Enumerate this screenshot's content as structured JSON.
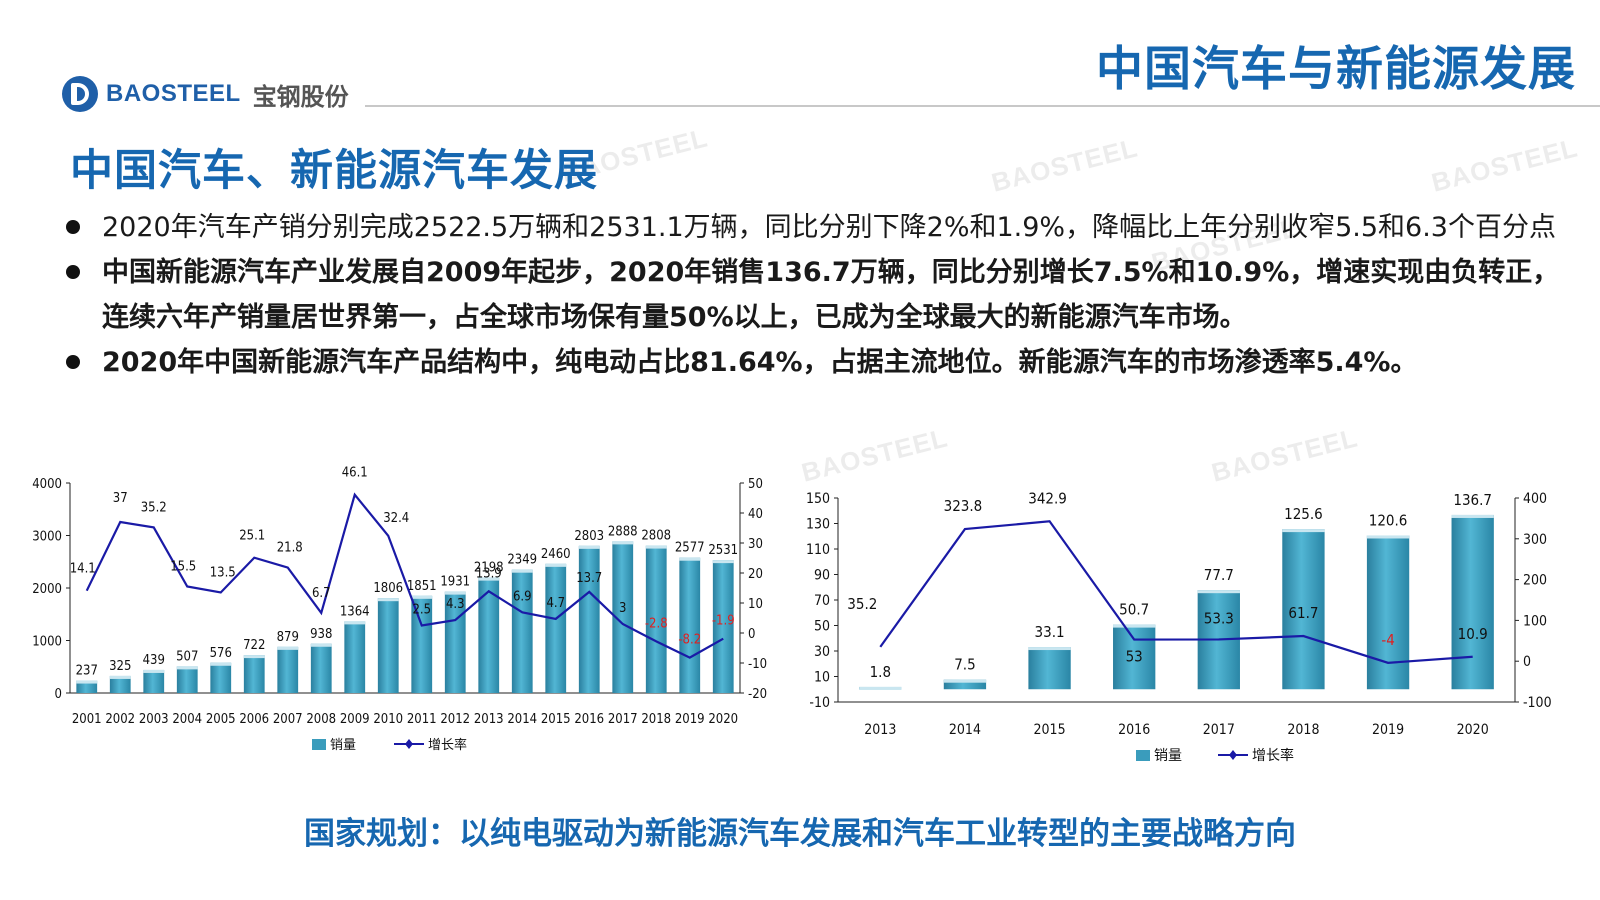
{
  "header": {
    "logo_en": "BAOSTEEL",
    "logo_cn": "宝钢股份",
    "page_title": "中国汽车与新能源发展",
    "watermark": "BAOSTEEL"
  },
  "section_title": "中国汽车、新能源汽车发展",
  "bullets": [
    {
      "text": "2020年汽车产销分别完成2522.5万辆和2531.1万辆，同比分别下降2%和1.9%，降幅比上年分别收窄5.5和6.3个百分点",
      "bold": false
    },
    {
      "text": "中国新能源汽车产业发展自2009年起步，2020年销售136.7万辆，同比分别增长7.5%和10.9%，增速实现由负转正，连续六年产销量居世界第一，占全球市场保有量50%以上，已成为全球最大的新能源汽车市场。",
      "bold": true
    },
    {
      "text": "2020年中国新能源汽车产品结构中，纯电动占比81.64%，占据主流地位。新能源汽车的市场渗透率5.4%。",
      "bold": true
    }
  ],
  "chart_data": [
    {
      "type": "bar",
      "categories": [
        "2001",
        "2002",
        "2003",
        "2004",
        "2005",
        "2006",
        "2007",
        "2008",
        "2009",
        "2010",
        "2011",
        "2012",
        "2013",
        "2014",
        "2015",
        "2016",
        "2017",
        "2018",
        "2019",
        "2020"
      ],
      "series": [
        {
          "name": "销量",
          "type": "bar",
          "axis": "left",
          "values": [
            237,
            325,
            439,
            507,
            576,
            722,
            879,
            938,
            1364,
            1806,
            1851,
            1931,
            2198,
            2349,
            2460,
            2803,
            2888,
            2808,
            2577,
            2531
          ]
        },
        {
          "name": "增长率",
          "type": "line",
          "axis": "right",
          "values": [
            14.1,
            37,
            35.2,
            15.5,
            13.5,
            25.1,
            21.8,
            6.7,
            46.1,
            32.4,
            2.5,
            4.3,
            13.9,
            6.9,
            4.7,
            13.7,
            3,
            -2.8,
            -8.2,
            -1.9
          ]
        }
      ],
      "y_left": {
        "min": 0,
        "max": 4000,
        "ticks": [
          0,
          1000,
          2000,
          3000,
          4000
        ]
      },
      "y_right": {
        "min": -20,
        "max": 50,
        "ticks": [
          -20,
          -10,
          0,
          10,
          20,
          30,
          40,
          50
        ]
      },
      "legend": {
        "placement": "bottom"
      },
      "colors": {
        "bar": "#3a9cbc",
        "line": "#1a1aa6",
        "negative_label": "#e02020"
      }
    },
    {
      "type": "bar",
      "categories": [
        "2013",
        "2014",
        "2015",
        "2016",
        "2017",
        "2018",
        "2019",
        "2020"
      ],
      "series": [
        {
          "name": "销量",
          "type": "bar",
          "axis": "left",
          "values": [
            1.8,
            7.5,
            33.1,
            50.7,
            77.7,
            125.6,
            120.6,
            136.7
          ]
        },
        {
          "name": "增长率",
          "type": "line",
          "axis": "right",
          "values": [
            35.2,
            323.8,
            342.9,
            53.0,
            53.3,
            61.7,
            -4.0,
            10.9
          ]
        }
      ],
      "y_left": {
        "min": -10,
        "max": 150,
        "ticks": [
          -10,
          10,
          30,
          50,
          70,
          90,
          110,
          130,
          150
        ]
      },
      "y_right": {
        "min": -100,
        "max": 400,
        "ticks": [
          -100,
          0,
          100,
          200,
          300,
          400
        ]
      },
      "legend": {
        "placement": "bottom"
      },
      "colors": {
        "bar": "#3a9cbc",
        "line": "#1a1aa6",
        "negative_label": "#e02020"
      }
    }
  ],
  "bottom_line": "国家规划：以纯电驱动为新能源汽车发展和汽车工业转型的主要战略方向"
}
